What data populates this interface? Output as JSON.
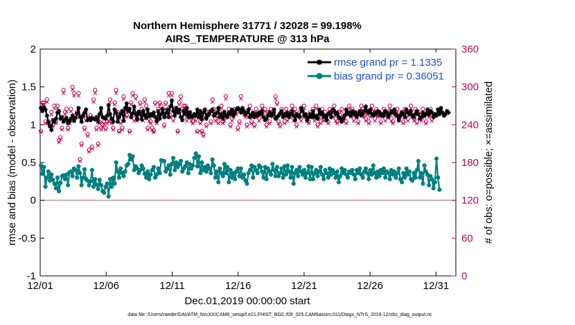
{
  "chart_data": {
    "type": "line",
    "title": "Northern Hemisphere 31771 / 32028 = 99.198%",
    "subtitle": "AIRS_TEMPERATURE @ 313 hPa",
    "xlabel": "Dec.01,2019 00:00:00 start",
    "ylabel": "rmse and bias (model - observation)",
    "y2label": "# of obs: o=possible; ×=assimilated",
    "xlim": [
      0,
      31.5
    ],
    "ylim": [
      -1,
      2
    ],
    "y2lim": [
      0,
      360
    ],
    "x_tick_values": [
      0,
      5,
      10,
      15,
      20,
      25,
      30
    ],
    "x_tick_labels": [
      "12/01",
      "12/06",
      "12/11",
      "12/16",
      "12/21",
      "12/26",
      "12/31"
    ],
    "y_ticks": [
      "2",
      "1.5",
      "1",
      "0.5",
      "0",
      "-0.5",
      "-1"
    ],
    "y_tick_values": [
      2,
      1.5,
      1,
      0.5,
      0,
      -0.5,
      -1
    ],
    "y2_ticks": [
      "360",
      "300",
      "240",
      "180",
      "120",
      "60",
      "0"
    ],
    "y2_tick_values": [
      360,
      300,
      240,
      180,
      120,
      60,
      0
    ],
    "legend_position": "top-right",
    "series": [
      {
        "name": "rmse grand pr = 1.1335",
        "color": "#000000",
        "marker": "asterisk",
        "values": [
          1.22,
          1.18,
          1.23,
          1.2,
          1.12,
          1.03,
          0.98,
          0.93,
          1.06,
          1.04,
          1.08,
          1.16,
          1.18,
          1.08,
          1.1,
          1.04,
          1.06,
          1.09,
          1.02,
          1.05,
          1.08,
          1.12,
          1.05,
          1.09,
          1.15,
          1.22,
          1.1,
          1.04,
          1.12,
          1.16,
          1.2,
          1.06,
          1.08,
          1.06,
          1.09,
          1.08,
          1.07,
          1.1,
          1.04,
          1.14,
          1.22,
          1.1,
          1.09,
          1.08,
          1.12,
          1.26,
          1.14,
          1.08,
          1.04,
          1.2,
          1.16,
          1.04,
          1.1,
          1.14,
          1.18,
          1.05,
          1.22,
          1.28,
          1.18,
          1.21,
          1.1,
          1.15,
          1.24,
          1.14,
          1.07,
          1.17,
          1.14,
          1.07,
          1.18,
          1.13,
          1.09,
          1.2,
          1.11,
          1.14,
          1.12,
          1.16,
          1.1,
          1.05,
          1.18,
          1.08,
          1.14,
          1.2,
          1.1,
          1.15,
          1.2,
          1.1,
          1.24,
          1.32,
          1.18,
          1.12,
          1.22,
          1.16,
          1.2,
          1.1,
          1.06,
          1.18,
          1.14,
          1.22,
          1.1,
          1.16,
          1.1,
          1.12,
          1.14,
          1.12,
          1.2,
          1.1,
          1.18,
          1.07,
          1.16,
          1.2,
          1.08,
          1.12,
          1.15,
          1.18,
          1.2,
          1.12,
          1.14,
          1.16,
          1.22,
          1.1,
          1.14,
          1.08,
          1.17,
          1.12,
          1.1,
          1.16,
          1.14,
          1.2,
          1.12,
          1.16,
          1.2,
          1.22,
          1.2,
          1.16,
          1.22,
          1.18,
          1.14,
          1.16,
          1.2,
          1.1,
          1.13,
          1.16,
          1.1,
          1.14,
          1.12,
          1.16,
          1.14,
          1.18,
          1.1,
          1.06,
          1.08,
          1.12,
          1.16,
          1.12,
          1.14,
          1.2,
          1.08,
          1.1,
          1.12,
          1.15,
          1.18,
          1.1,
          1.14,
          1.12,
          1.16,
          1.1,
          1.14,
          1.18,
          1.12,
          1.06,
          1.14,
          1.12,
          1.1,
          1.22,
          1.18,
          1.12,
          1.14,
          1.06,
          1.1,
          1.14,
          1.1,
          1.18,
          1.1,
          1.12,
          1.08,
          1.2,
          1.14,
          1.16,
          1.1,
          1.12,
          1.06,
          1.14,
          1.16,
          1.1,
          1.2,
          1.18,
          1.14,
          1.16,
          1.1,
          1.08,
          1.04,
          1.08,
          1.12,
          1.2,
          1.14,
          1.16,
          1.12,
          1.18,
          1.14,
          1.16,
          1.1,
          1.14,
          1.18,
          1.12,
          1.14,
          1.18,
          1.24,
          1.18,
          1.16,
          1.2,
          1.14,
          1.12,
          1.16,
          1.14,
          1.18,
          1.16,
          1.12,
          1.14,
          1.12,
          1.18,
          1.16,
          1.1,
          1.14,
          1.18,
          1.16,
          1.2,
          1.14,
          1.12,
          1.06,
          1.12,
          1.16,
          1.14,
          1.1,
          1.2,
          1.16,
          1.14,
          1.18,
          1.12,
          1.1,
          1.14,
          1.18,
          1.14,
          1.08,
          1.1,
          1.16,
          1.12,
          1.14,
          1.2,
          1.14,
          1.18,
          1.16,
          1.1,
          1.14,
          1.12,
          1.2,
          1.14,
          1.22,
          1.16,
          1.12,
          1.14,
          1.18,
          1.16
        ]
      },
      {
        "name": "bias grand pr = 0.36051",
        "color": "#008080",
        "marker": "circle",
        "values": [
          0.46,
          0.35,
          0.44,
          0.18,
          0.3,
          0.38,
          0.26,
          0.34,
          0.27,
          0.22,
          0.16,
          0.3,
          0.12,
          0.23,
          0.32,
          0.33,
          0.28,
          0.34,
          0.2,
          0.37,
          0.38,
          0.32,
          0.42,
          0.4,
          0.3,
          0.45,
          0.36,
          0.2,
          0.3,
          0.41,
          0.28,
          0.26,
          0.2,
          0.25,
          0.4,
          0.18,
          0.28,
          0.21,
          0.15,
          0.27,
          0.2,
          0.12,
          0.1,
          0.18,
          0.22,
          0.05,
          0.28,
          0.18,
          0.3,
          0.22,
          0.5,
          0.38,
          0.3,
          0.42,
          0.36,
          0.32,
          0.38,
          0.46,
          0.48,
          0.6,
          0.54,
          0.58,
          0.4,
          0.45,
          0.42,
          0.36,
          0.4,
          0.46,
          0.42,
          0.35,
          0.3,
          0.38,
          0.28,
          0.34,
          0.4,
          0.44,
          0.3,
          0.34,
          0.42,
          0.36,
          0.53,
          0.52,
          0.52,
          0.38,
          0.42,
          0.46,
          0.34,
          0.48,
          0.56,
          0.4,
          0.5,
          0.44,
          0.48,
          0.52,
          0.38,
          0.42,
          0.45,
          0.5,
          0.36,
          0.48,
          0.42,
          0.46,
          0.56,
          0.62,
          0.45,
          0.58,
          0.36,
          0.5,
          0.4,
          0.44,
          0.38,
          0.46,
          0.42,
          0.36,
          0.54,
          0.46,
          0.3,
          0.38,
          0.24,
          0.42,
          0.36,
          0.32,
          0.48,
          0.36,
          0.44,
          0.24,
          0.4,
          0.3,
          0.36,
          0.28,
          0.38,
          0.42,
          0.32,
          0.42,
          0.3,
          0.34,
          0.26,
          0.22,
          0.36,
          0.4,
          0.46,
          0.3,
          0.44,
          0.4,
          0.36,
          0.46,
          0.44,
          0.38,
          0.3,
          0.44,
          0.28,
          0.42,
          0.38,
          0.34,
          0.48,
          0.4,
          0.32,
          0.44,
          0.32,
          0.36,
          0.42,
          0.3,
          0.45,
          0.34,
          0.46,
          0.38,
          0.3,
          0.44,
          0.22,
          0.36,
          0.4,
          0.32,
          0.44,
          0.38,
          0.34,
          0.4,
          0.3,
          0.36,
          0.45,
          0.28,
          0.44,
          0.28,
          0.36,
          0.4,
          0.32,
          0.38,
          0.44,
          0.34,
          0.28,
          0.4,
          0.36,
          0.3,
          0.42,
          0.34,
          0.4,
          0.36,
          0.3,
          0.38,
          0.24,
          0.32,
          0.42,
          0.36,
          0.4,
          0.34,
          0.3,
          0.38,
          0.36,
          0.4,
          0.34,
          0.28,
          0.4,
          0.36,
          0.42,
          0.34,
          0.3,
          0.38,
          0.42,
          0.36,
          0.28,
          0.4,
          0.34,
          0.46,
          0.36,
          0.3,
          0.38,
          0.32,
          0.4,
          0.36,
          0.42,
          0.3,
          0.38,
          0.36,
          0.28,
          0.4,
          0.34,
          0.38,
          0.3,
          0.36,
          0.42,
          0.28,
          0.24,
          0.36,
          0.3,
          0.42,
          0.34,
          0.38,
          0.28,
          0.26,
          0.36,
          0.3,
          0.4,
          0.52,
          0.3,
          0.36,
          0.22,
          0.46,
          0.38,
          0.34,
          0.2,
          0.32,
          0.28,
          0.16,
          0.24,
          0.55,
          0.3,
          0.14
        ]
      }
    ],
    "obs_possible": [
      230,
      275,
      275,
      245,
      280,
      245,
      240,
      260,
      240,
      270,
      245,
      270,
      215,
      220,
      235,
      295,
      260,
      265,
      235,
      245,
      265,
      300,
      290,
      255,
      260,
      290,
      185,
      210,
      255,
      235,
      250,
      225,
      200,
      255,
      205,
      280,
      295,
      235,
      210,
      245,
      235,
      240,
      245,
      235,
      245,
      250,
      280,
      245,
      235,
      275,
      295,
      260,
      230,
      245,
      235,
      285,
      260,
      255,
      265,
      230,
      275,
      290,
      250,
      285,
      250,
      260,
      275,
      265,
      250,
      280,
      270,
      235,
      250,
      245,
      235,
      230,
      275,
      245,
      265,
      275,
      270,
      265,
      240,
      275,
      255,
      290,
      255,
      290,
      250,
      265,
      265,
      230,
      275,
      285,
      265,
      270,
      270,
      250,
      255,
      260,
      250,
      245,
      255,
      250,
      230,
      260,
      245,
      230,
      225,
      255,
      240,
      260,
      260,
      245,
      280,
      265,
      250,
      255,
      245,
      260,
      270,
      245,
      250,
      285,
      255,
      265,
      240,
      250,
      255,
      265,
      260,
      235,
      245,
      285,
      265,
      260,
      255,
      240,
      255,
      270,
      245,
      255,
      240,
      265,
      255,
      250,
      260,
      270,
      255,
      265,
      240,
      260,
      245,
      265,
      255,
      260,
      285,
      275,
      245,
      240,
      265,
      255,
      245,
      265,
      250,
      255,
      260,
      270,
      250,
      265,
      240,
      255,
      260,
      250,
      265,
      270,
      255,
      250,
      245,
      260,
      255,
      265,
      250,
      270,
      240,
      255,
      245,
      265,
      250,
      260,
      255,
      245,
      265,
      260,
      255,
      270,
      250,
      245,
      260,
      255,
      265,
      250,
      255,
      245,
      260,
      270,
      255,
      265,
      250,
      260,
      255,
      245,
      260,
      270,
      265,
      255,
      250,
      260,
      245,
      255,
      270,
      260,
      250,
      265,
      255,
      260,
      245,
      255,
      265,
      250,
      260,
      255,
      270,
      250,
      245,
      260,
      255,
      265,
      250,
      255,
      260,
      245,
      265,
      255,
      250,
      260,
      270,
      255,
      250,
      265,
      245,
      260,
      255,
      250,
      265,
      255,
      245,
      260,
      255,
      265,
      250
    ],
    "obs_assimilated": [
      228,
      272,
      272,
      242,
      276,
      242,
      237,
      256,
      237,
      266,
      242,
      266,
      212,
      217,
      232,
      290,
      256,
      261,
      232,
      242,
      261,
      296,
      286,
      252,
      256,
      286,
      182,
      207,
      252,
      232,
      246,
      222,
      197,
      252,
      202,
      276,
      290,
      232,
      207,
      242,
      232,
      237,
      242,
      232,
      242,
      246,
      276,
      242,
      232,
      272,
      290,
      256,
      228,
      242,
      232,
      281,
      256,
      252,
      261,
      228,
      272,
      286,
      246,
      281,
      246,
      256,
      272,
      261,
      246,
      276,
      266,
      232,
      246,
      242,
      232,
      228,
      272,
      242,
      261,
      272,
      266,
      261,
      237,
      272,
      252,
      286,
      252,
      286,
      246,
      261,
      261,
      228,
      272,
      281,
      261,
      266,
      266,
      246,
      252,
      256,
      246,
      242,
      252,
      246,
      228,
      256,
      242,
      228,
      222,
      252,
      237,
      256,
      256,
      242,
      276,
      261,
      246,
      252,
      242,
      256,
      266,
      242,
      246,
      281,
      252,
      261,
      237,
      246,
      252,
      261,
      256,
      232,
      242,
      281,
      261,
      256,
      252,
      237,
      252,
      266,
      242,
      252,
      237,
      261,
      252,
      246,
      256,
      266,
      252,
      261,
      237,
      256,
      242,
      261,
      252,
      256,
      281,
      272,
      242,
      237,
      261,
      252,
      242,
      261,
      246,
      252,
      256,
      266,
      246,
      261,
      237,
      252,
      256,
      246,
      261,
      266,
      252,
      246,
      242,
      256,
      252,
      261,
      246,
      266,
      237,
      252,
      242,
      261,
      246,
      256,
      252,
      242,
      261,
      256,
      252,
      266,
      246,
      242,
      256,
      252,
      261,
      246,
      252,
      242,
      256,
      266,
      252,
      261,
      246,
      256,
      252,
      242,
      256,
      266,
      261,
      252,
      246,
      256,
      242,
      252,
      266,
      256,
      246,
      261,
      252,
      256,
      242,
      252,
      261,
      246,
      256,
      252,
      266,
      246,
      242,
      256,
      252,
      261,
      246,
      252,
      256,
      242,
      261,
      252,
      246,
      256,
      266,
      252,
      246,
      261,
      242,
      256,
      252,
      246,
      261,
      252,
      242,
      256,
      252,
      261,
      246
    ],
    "reference_line": {
      "y": 0,
      "color": "#bf9999"
    },
    "right_axis_color": "#cc0055"
  },
  "footer": {
    "data_file": "data file: /Users/raeder/DAI/ATM_forcXX/CAM6_setup/f.e21.FHIST_BGC.f09_025.CAM6assim.011/Diags_NTrS_2019-12/obs_diag_output.nc"
  }
}
